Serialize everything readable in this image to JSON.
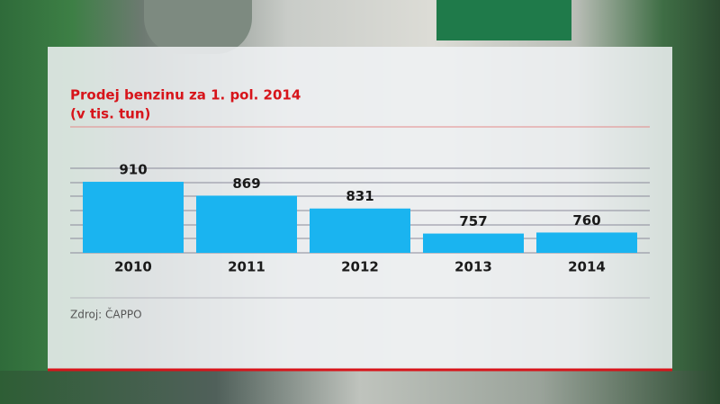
{
  "chart_data": {
    "type": "bar",
    "title": "Prodej benzinu za 1. pol. 2014",
    "subtitle": "(v tis. tun)",
    "categories": [
      "2010",
      "2011",
      "2012",
      "2013",
      "2014"
    ],
    "values": [
      910,
      869,
      831,
      757,
      760
    ],
    "color": "#1ab4f0",
    "ylim": [
      700,
      950
    ],
    "source": "Zdroj: ČAPPO"
  }
}
